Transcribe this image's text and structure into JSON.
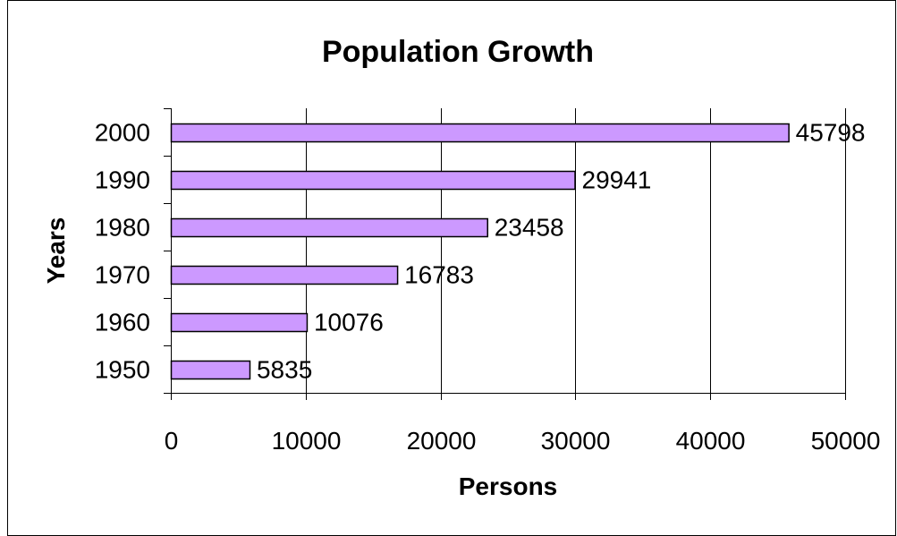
{
  "chart_data": {
    "type": "bar",
    "orientation": "horizontal",
    "title": "Population Growth",
    "xlabel": "Persons",
    "ylabel": "Years",
    "categories": [
      "1950",
      "1960",
      "1970",
      "1980",
      "1990",
      "2000"
    ],
    "values": [
      5835,
      10076,
      16783,
      23458,
      29941,
      45798
    ],
    "data_labels": [
      "5835",
      "10076",
      "16783",
      "23458",
      "29941",
      "45798"
    ],
    "xlim": [
      0,
      50000
    ],
    "x_ticks": [
      0,
      10000,
      20000,
      30000,
      40000,
      50000
    ],
    "x_tick_labels": [
      "0",
      "10000",
      "20000",
      "30000",
      "40000",
      "50000"
    ],
    "grid": "vertical major gridlines",
    "legend": "none",
    "bar_color": "#CC99FF",
    "bar_edge_color": "#000000"
  }
}
